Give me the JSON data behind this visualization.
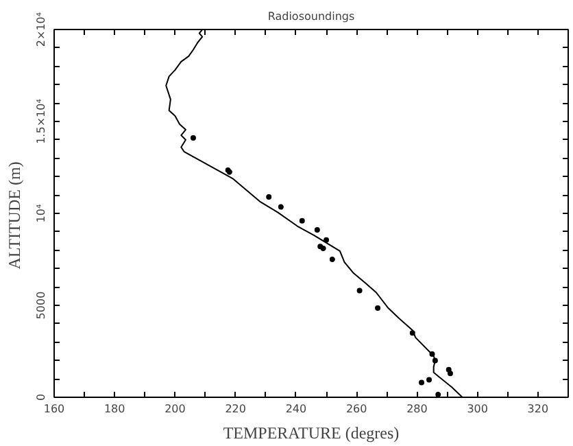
{
  "chart_data": {
    "type": "line",
    "title": "Radiosoundings",
    "xlabel": "TEMPERATURE (degres)",
    "ylabel": "ALTITUDE  (m)",
    "xlim": [
      160,
      330
    ],
    "ylim": [
      0,
      20000
    ],
    "xticks": [
      160,
      {
        "value": 170,
        "label": null
      },
      180,
      {
        "value": 190,
        "label": null
      },
      200,
      {
        "value": 210,
        "label": null
      },
      220,
      {
        "value": 230,
        "label": null
      },
      240,
      {
        "value": 250,
        "label": null
      },
      260,
      {
        "value": 270,
        "label": null
      },
      280,
      {
        "value": 290,
        "label": null
      },
      300,
      {
        "value": 310,
        "label": null
      },
      320
    ],
    "yticks": [
      0,
      {
        "value": 1000,
        "label": null
      },
      {
        "value": 2000,
        "label": null
      },
      {
        "value": 3000,
        "label": null
      },
      {
        "value": 4000,
        "label": null
      },
      5000,
      {
        "value": 6000,
        "label": null
      },
      {
        "value": 7000,
        "label": null
      },
      {
        "value": 8000,
        "label": null
      },
      {
        "value": 9000,
        "label": null
      },
      {
        "value": 10000,
        "label": "10⁴"
      },
      {
        "value": 11000,
        "label": null
      },
      {
        "value": 12000,
        "label": null
      },
      {
        "value": 13000,
        "label": null
      },
      {
        "value": 14000,
        "label": null
      },
      {
        "value": 15000,
        "label": "1.5×10⁴"
      },
      {
        "value": 16000,
        "label": null
      },
      {
        "value": 17000,
        "label": null
      },
      {
        "value": 18000,
        "label": null
      },
      {
        "value": 19000,
        "label": null
      },
      {
        "value": 20000,
        "label": "2×10⁴"
      }
    ],
    "grid": false,
    "series": [
      {
        "color": "#000000",
        "line_style": "solid",
        "marker": "none",
        "x": [
          295,
          291.5,
          287,
          285.5,
          285.5,
          286,
          285.5,
          284,
          279.5,
          278.5,
          274,
          270.5,
          266.5,
          263,
          259,
          256,
          254.5,
          251.5,
          246,
          240.5,
          234,
          228,
          219,
          203,
          202,
          203.5,
          202,
          203.5,
          201.5,
          200,
          198,
          198.5,
          197,
          198,
          200,
          202,
          204.5,
          206,
          207.5,
          209,
          208,
          209
        ],
        "values": [
          0,
          550,
          1150,
          1350,
          1650,
          2000,
          2250,
          2500,
          3250,
          3650,
          4300,
          4850,
          5700,
          6200,
          6750,
          7350,
          7950,
          8250,
          8800,
          9300,
          10050,
          10650,
          11900,
          13350,
          13600,
          14000,
          14250,
          14550,
          14850,
          15300,
          15600,
          16200,
          16950,
          17450,
          17800,
          18250,
          18550,
          18900,
          19300,
          19600,
          19800,
          20000
        ]
      },
      {
        "type": "scatter",
        "color": "#000000",
        "marker": "circle",
        "x": [
          206,
          217.5,
          218,
          231,
          235,
          242,
          247,
          250,
          248,
          249,
          252,
          261,
          267,
          278.5,
          285,
          286,
          290.5,
          291,
          284,
          281.5,
          287
        ],
        "values": [
          14100,
          12350,
          12250,
          10900,
          10350,
          9600,
          9100,
          8550,
          8200,
          8100,
          7500,
          5800,
          4850,
          3500,
          2350,
          2000,
          1500,
          1300,
          950,
          800,
          150
        ]
      }
    ]
  }
}
